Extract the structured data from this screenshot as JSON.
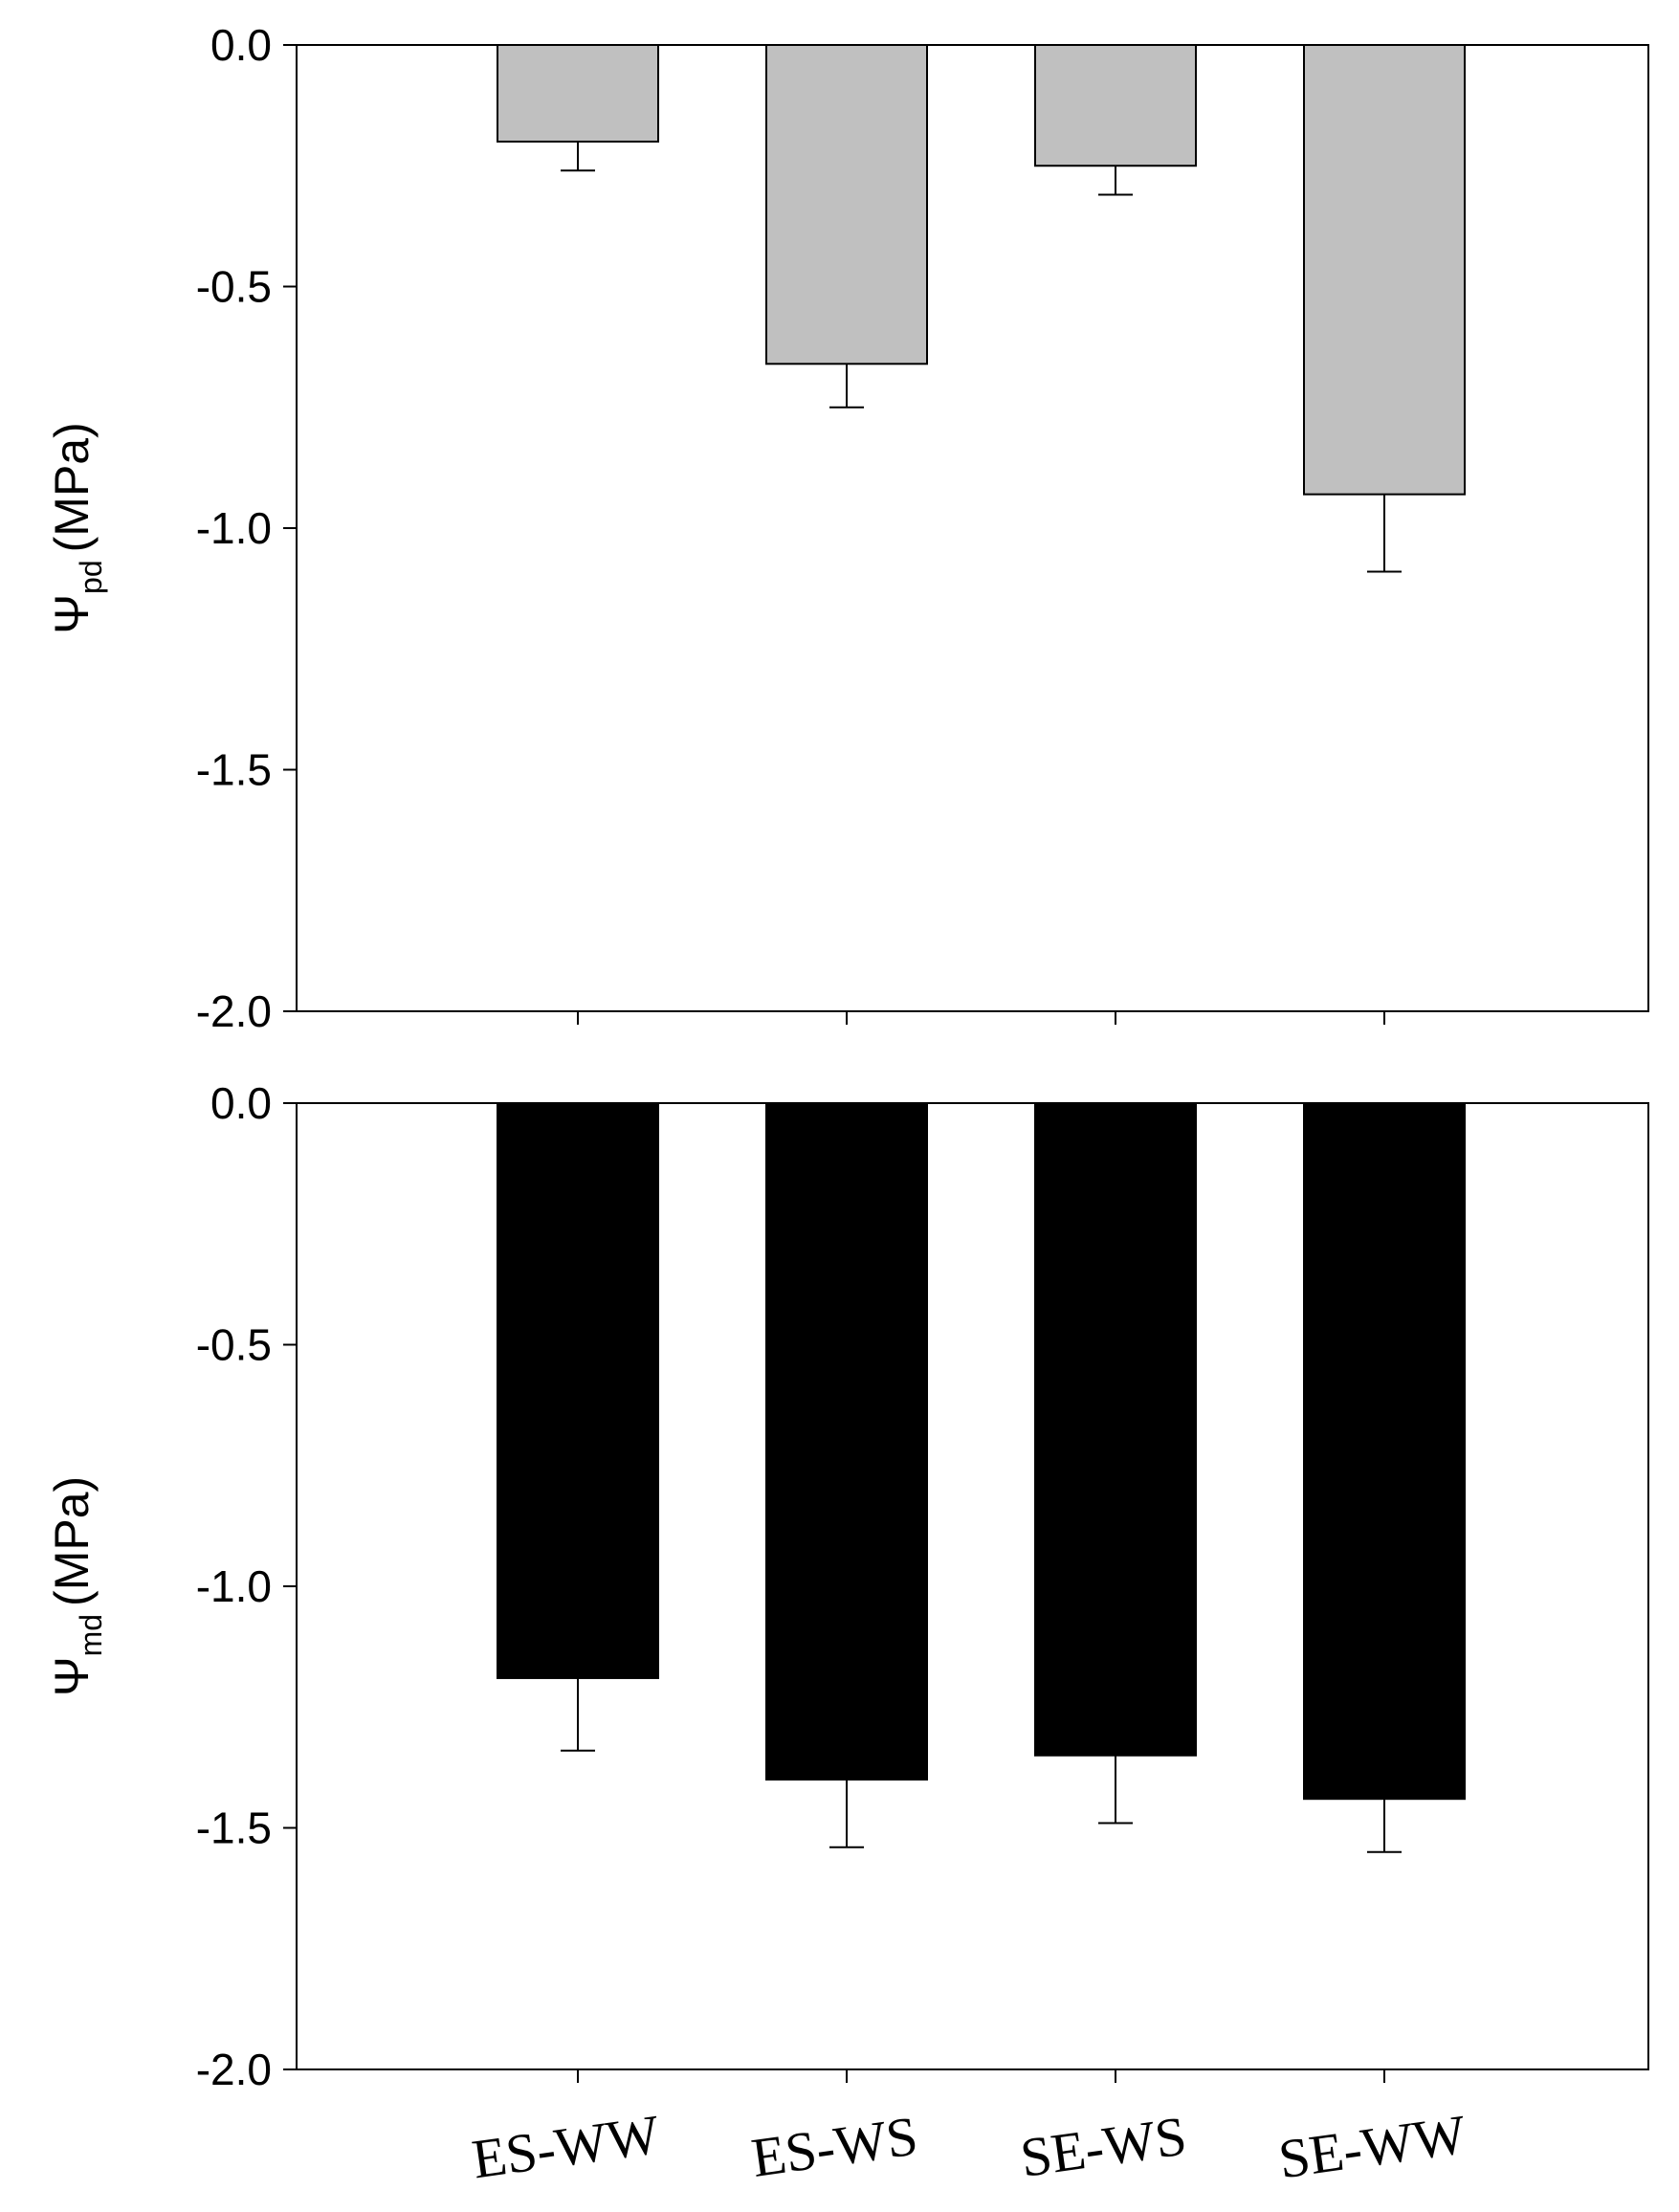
{
  "chart_data": [
    {
      "type": "bar",
      "categories": [
        "ES-WW",
        "ES-WS",
        "SE-WS",
        "SE-WW"
      ],
      "values": [
        -0.2,
        -0.66,
        -0.25,
        -0.93
      ],
      "errors": [
        0.06,
        0.09,
        0.06,
        0.16
      ],
      "bar_color": "#c0c0c0",
      "ylabel_symbol": "Ψ",
      "ylabel_sub": "pd",
      "ylabel_unit": "(MPa)",
      "ylim": [
        -2.0,
        0.0
      ],
      "yticks": [
        "0.0",
        "-0.5",
        "-1.0",
        "-1.5",
        "-2.0"
      ],
      "show_category_labels": false
    },
    {
      "type": "bar",
      "categories": [
        "ES-WW",
        "ES-WS",
        "SE-WS",
        "SE-WW"
      ],
      "values": [
        -1.19,
        -1.4,
        -1.35,
        -1.44
      ],
      "errors": [
        0.15,
        0.14,
        0.14,
        0.11
      ],
      "bar_color": "#000000",
      "ylabel_symbol": "Ψ",
      "ylabel_sub": "md",
      "ylabel_unit": "(MPa)",
      "ylim": [
        -2.0,
        0.0
      ],
      "yticks": [
        "0.0",
        "-0.5",
        "-1.0",
        "-1.5",
        "-2.0"
      ],
      "show_category_labels": true
    }
  ]
}
